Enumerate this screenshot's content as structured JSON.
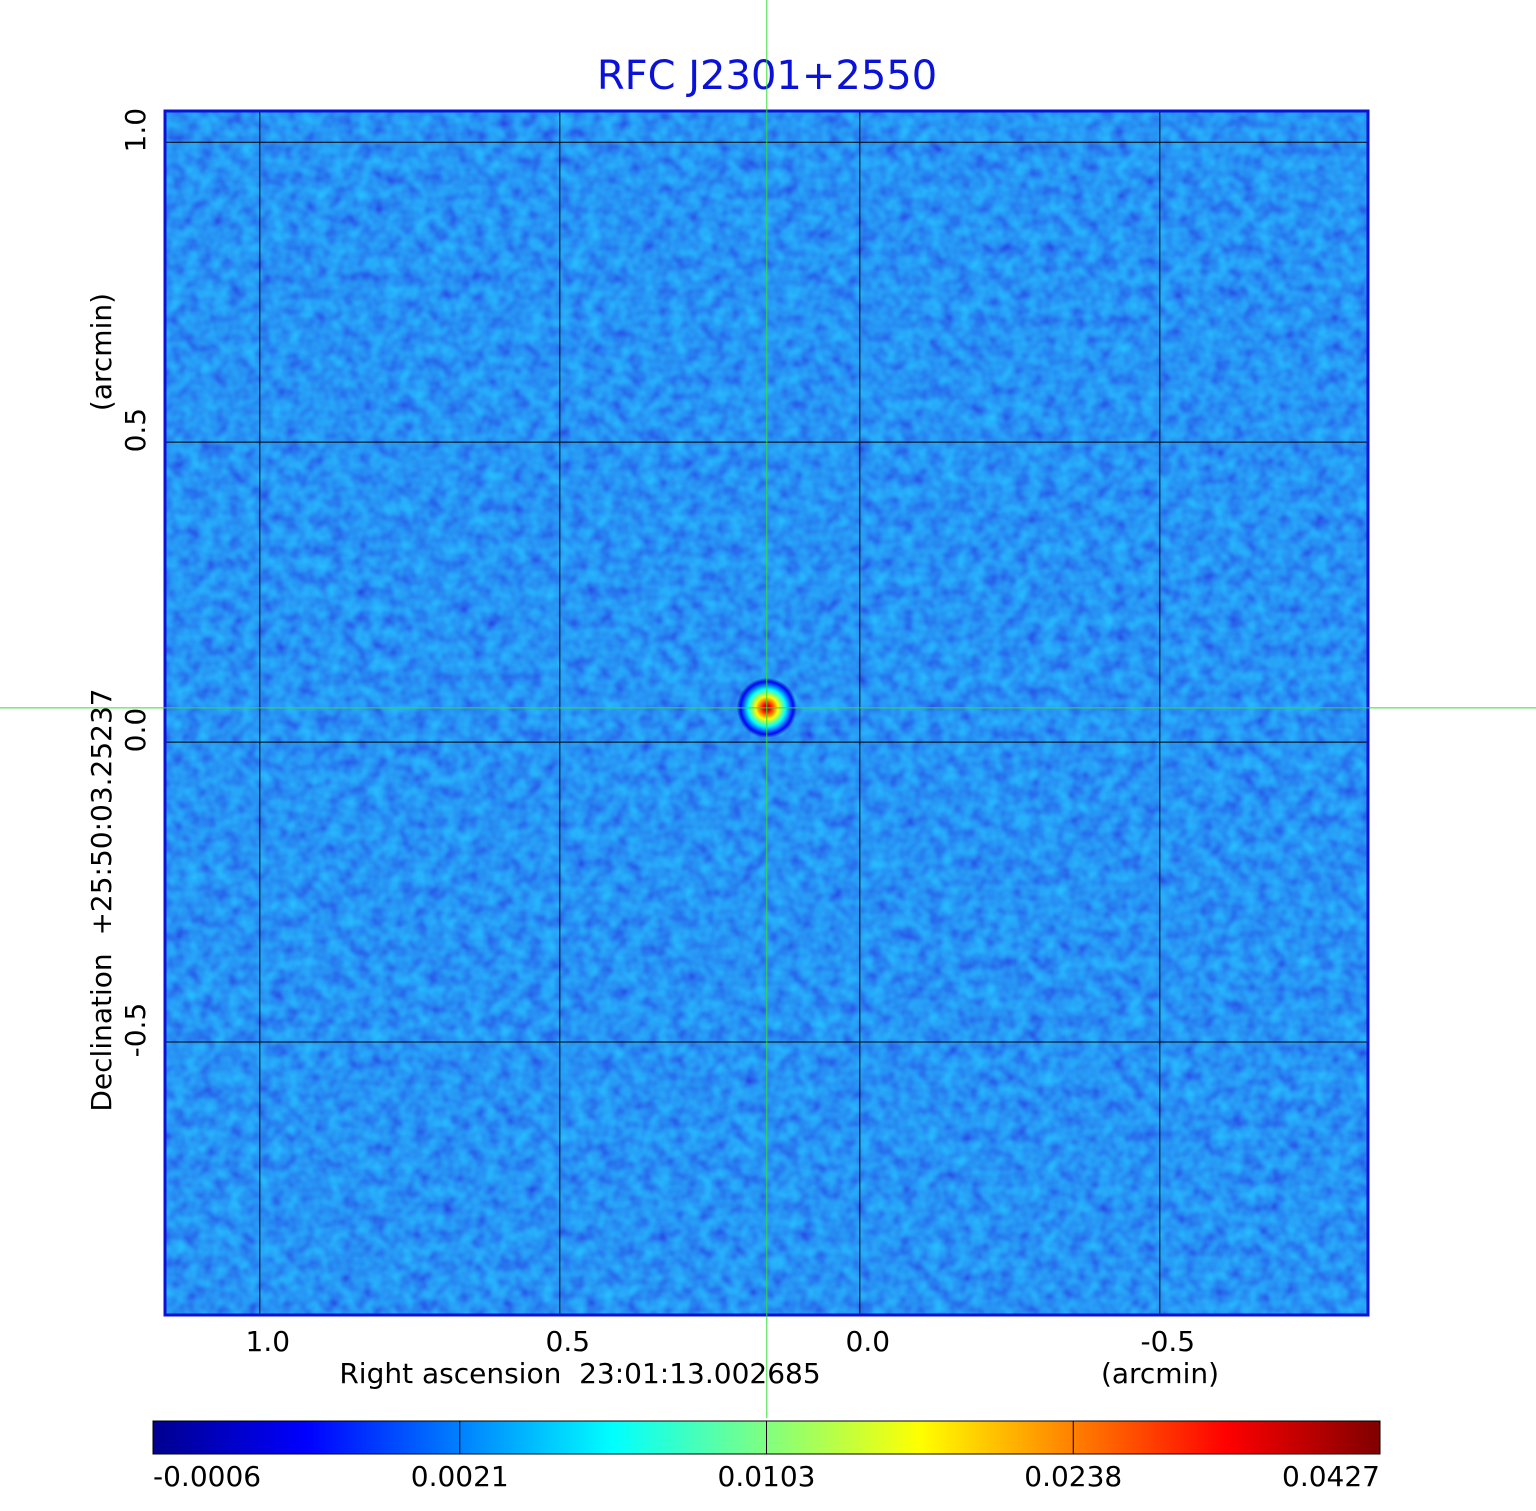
{
  "chart_data": {
    "type": "image",
    "title": "RFC J2301+2550",
    "xlabel": "Right ascension  23:01:13.002685",
    "xunit": "(arcmin)",
    "ylabel": "Declination  +25:50:03.25237",
    "yunit": "(arcmin)",
    "xlim": [
      1.158,
      -0.847
    ],
    "ylim": [
      -0.955,
      1.052
    ],
    "xticks": [
      {
        "value": 1,
        "label": "1.0"
      },
      0.5,
      {
        "value": 0,
        "label": "0.0"
      },
      -0.5
    ],
    "yticks": [
      -0.5,
      {
        "value": 0,
        "label": "0.0"
      },
      0.5,
      {
        "value": 1,
        "label": "1.0"
      }
    ],
    "grid": true,
    "source": {
      "x": 0.155,
      "y": 0.057
    },
    "colors": [
      "#00008f",
      "#0000ff",
      "#0080ff",
      "#00ffff",
      "#80ff80",
      "#ffff00",
      "#ff8000",
      "#ff0000",
      "#800000"
    ],
    "colorbar_ticks": [
      -0.0006,
      0.0021,
      0.0103,
      0.0238,
      0.0427
    ]
  }
}
